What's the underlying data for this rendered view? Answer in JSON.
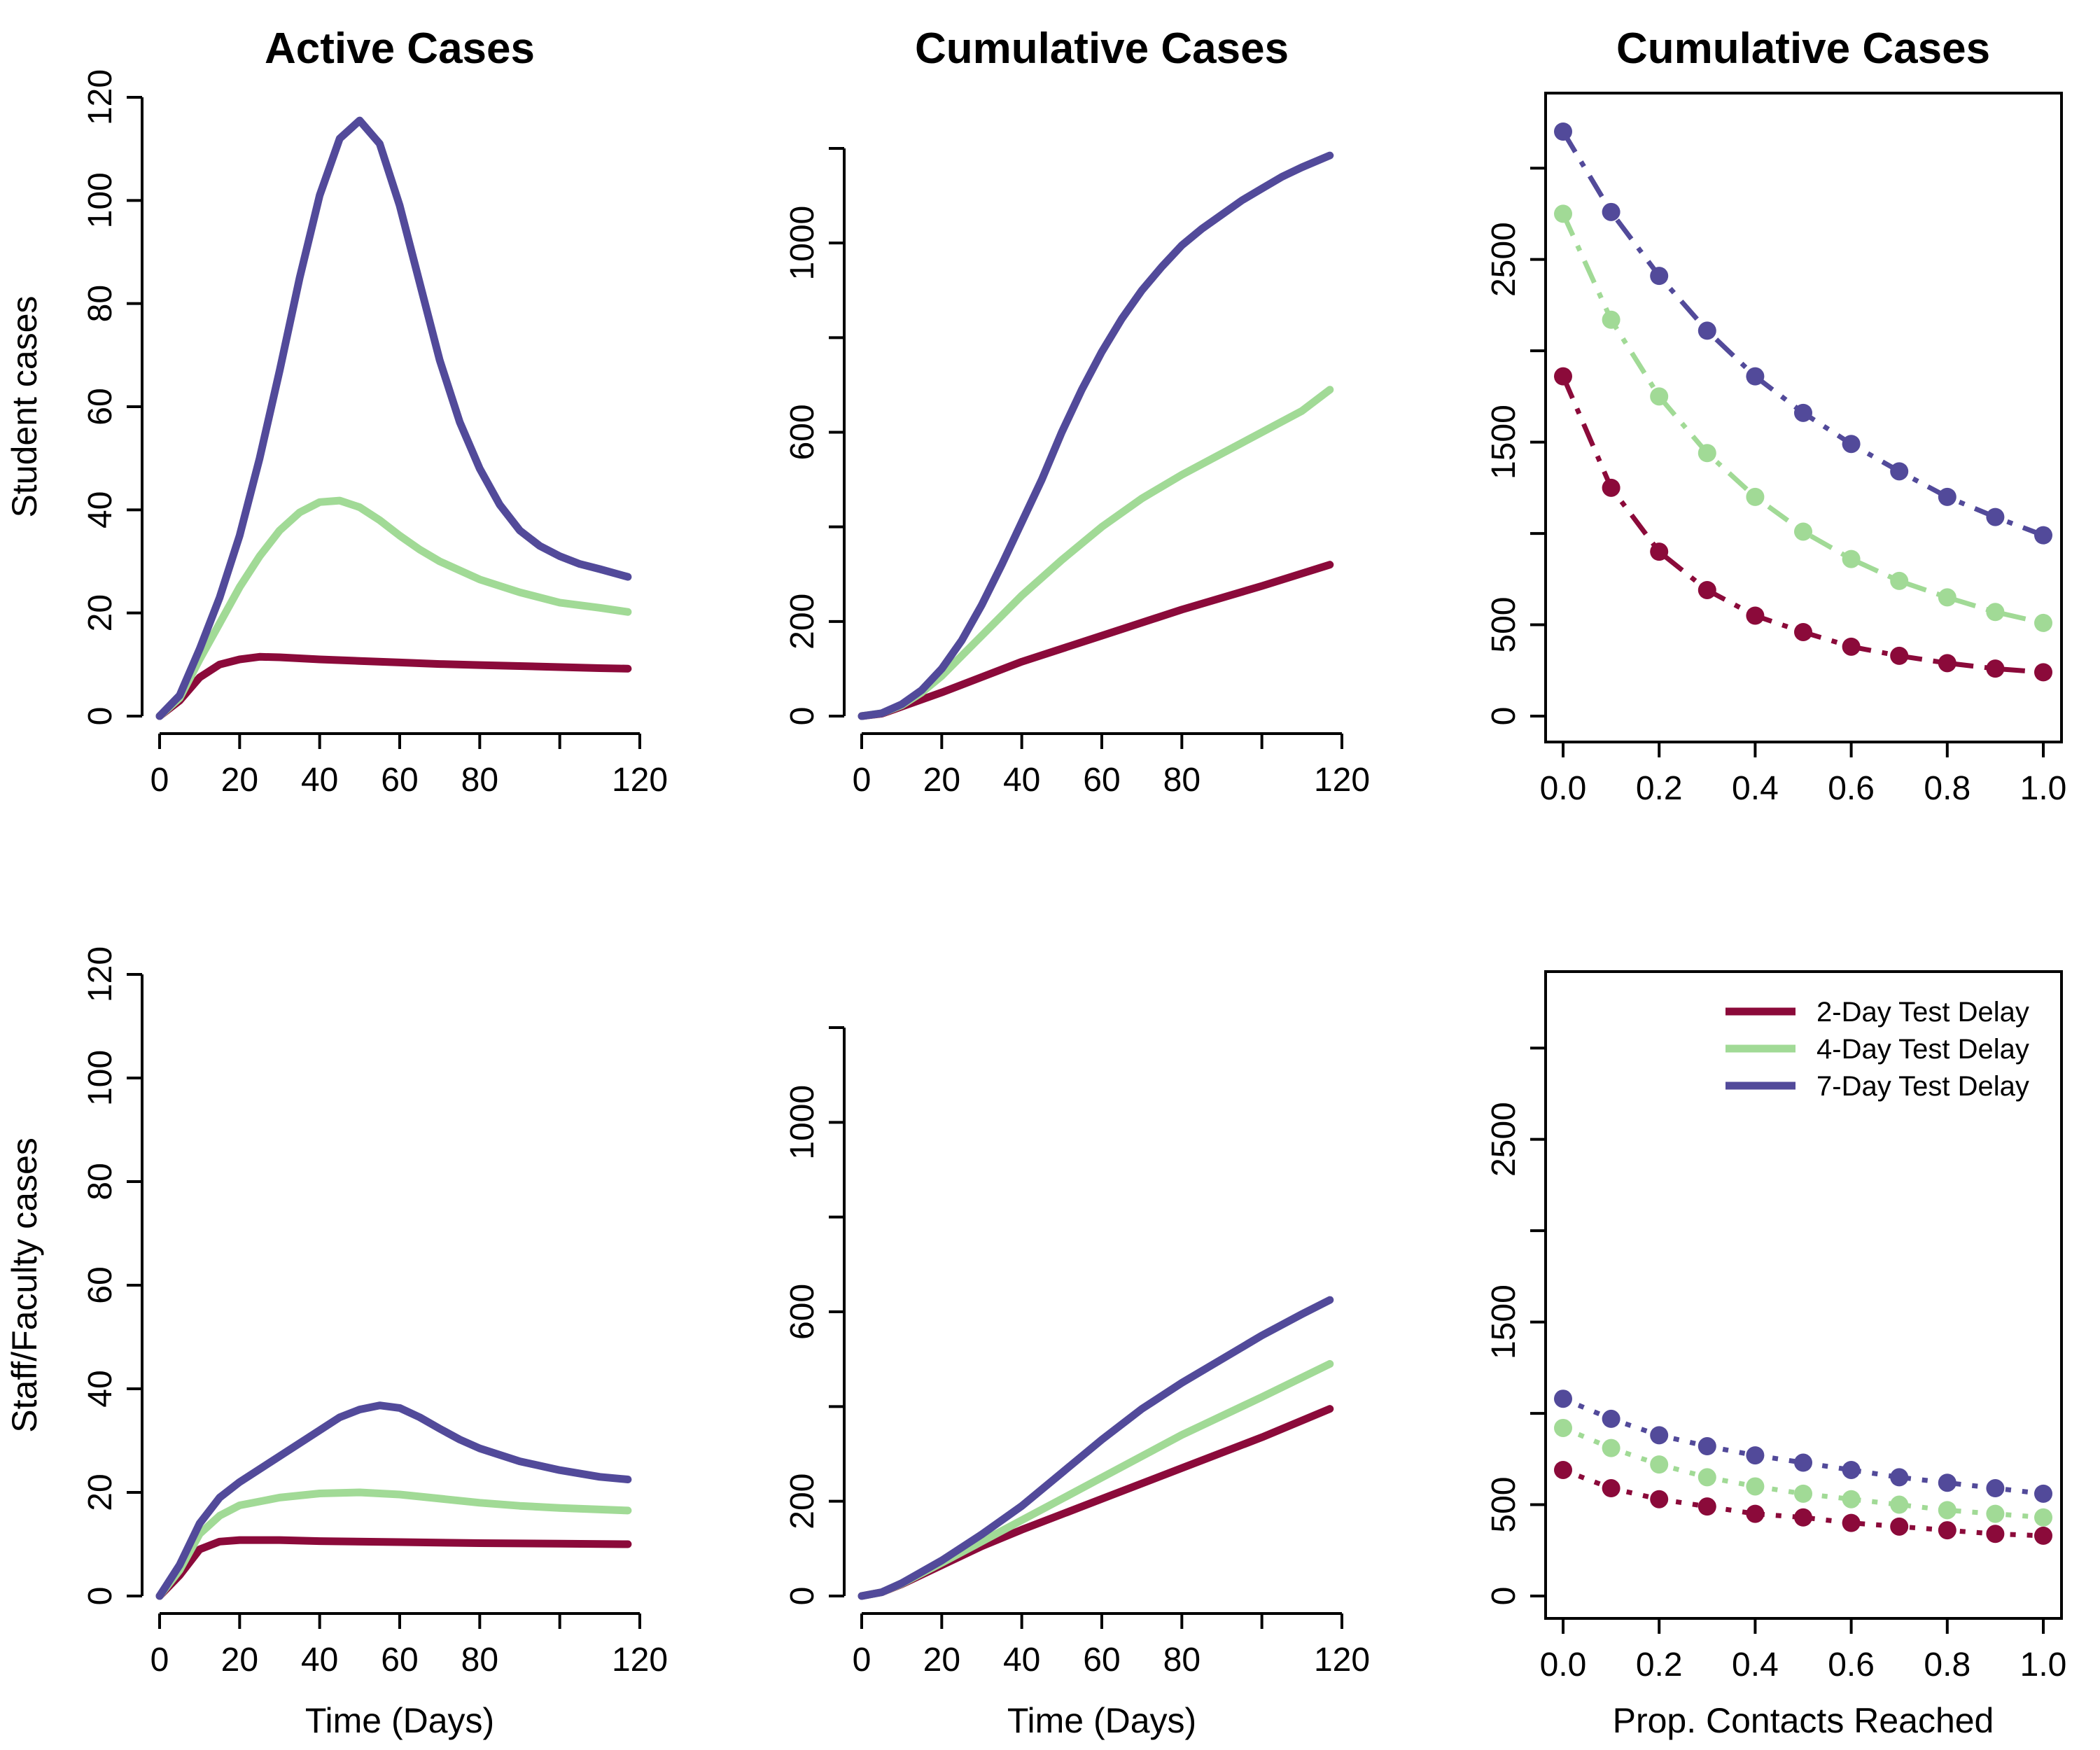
{
  "colors": {
    "delay2": "#8B0A3A",
    "delay4": "#A1DA96",
    "delay7": "#524A9A"
  },
  "legend": {
    "entries": [
      "2-Day Test Delay",
      "4-Day Test Delay",
      "7-Day Test Delay"
    ],
    "placement": "top-right"
  },
  "chart_data": [
    {
      "id": "student-active",
      "type": "line",
      "title": "Active Cases",
      "xlabel": "",
      "ylabel": "Student cases",
      "xlim": [
        0,
        120
      ],
      "ylim": [
        0,
        120
      ],
      "xticks": [
        0,
        20,
        40,
        60,
        80,
        100,
        120
      ],
      "xtick_labels": [
        "0",
        "20",
        "40",
        "60",
        "80",
        "",
        "120"
      ],
      "yticks": [
        0,
        20,
        40,
        60,
        80,
        100,
        120
      ],
      "ytick_labels": [
        "0",
        "20",
        "40",
        "60",
        "80",
        "100",
        "120"
      ],
      "series": [
        {
          "key": "delay2",
          "x": [
            0,
            5,
            10,
            15,
            20,
            25,
            30,
            40,
            50,
            60,
            70,
            80,
            90,
            100,
            110,
            117
          ],
          "y": [
            0,
            3,
            7.5,
            10,
            11,
            11.5,
            11.4,
            11,
            10.7,
            10.4,
            10.1,
            9.9,
            9.7,
            9.5,
            9.3,
            9.2
          ]
        },
        {
          "key": "delay4",
          "x": [
            0,
            5,
            10,
            15,
            20,
            25,
            30,
            35,
            40,
            45,
            50,
            55,
            60,
            65,
            70,
            80,
            90,
            100,
            110,
            117
          ],
          "y": [
            0,
            3.5,
            11,
            18,
            25,
            31,
            36,
            39.5,
            41.5,
            41.8,
            40.5,
            38,
            35,
            32.3,
            30,
            26.5,
            24,
            22,
            21,
            20.2
          ]
        },
        {
          "key": "delay7",
          "x": [
            0,
            5,
            10,
            15,
            20,
            25,
            30,
            35,
            40,
            45,
            50,
            55,
            60,
            65,
            70,
            75,
            80,
            85,
            90,
            95,
            100,
            105,
            110,
            117
          ],
          "y": [
            0,
            4,
            13,
            23,
            35,
            50,
            67,
            85,
            101,
            112,
            115.5,
            111,
            99,
            84,
            69,
            57,
            48,
            41,
            36,
            33,
            31,
            29.5,
            28.5,
            27
          ]
        }
      ]
    },
    {
      "id": "student-cumulative",
      "type": "line",
      "title": "Cumulative Cases",
      "xlabel": "",
      "ylabel": "",
      "xlim": [
        0,
        120
      ],
      "ylim": [
        0,
        1200
      ],
      "xticks": [
        0,
        20,
        40,
        60,
        80,
        100,
        120
      ],
      "xtick_labels": [
        "0",
        "20",
        "40",
        "60",
        "80",
        "",
        "120"
      ],
      "yticks": [
        0,
        200,
        400,
        600,
        800,
        1000,
        1200
      ],
      "ytick_labels": [
        "0",
        "200",
        "",
        "600",
        "",
        "1000",
        ""
      ],
      "series": [
        {
          "key": "delay2",
          "x": [
            0,
            5,
            10,
            20,
            40,
            60,
            80,
            100,
            117
          ],
          "y": [
            0,
            5,
            20,
            50,
            115,
            170,
            225,
            275,
            320
          ]
        },
        {
          "key": "delay4",
          "x": [
            0,
            5,
            10,
            15,
            20,
            30,
            40,
            50,
            60,
            70,
            80,
            90,
            100,
            110,
            117
          ],
          "y": [
            0,
            6,
            23,
            50,
            85,
            170,
            255,
            330,
            400,
            460,
            510,
            555,
            600,
            645,
            690
          ]
        },
        {
          "key": "delay7",
          "x": [
            0,
            5,
            10,
            15,
            20,
            25,
            30,
            35,
            40,
            45,
            50,
            55,
            60,
            65,
            70,
            75,
            80,
            85,
            90,
            95,
            100,
            105,
            110,
            117
          ],
          "y": [
            0,
            6,
            25,
            55,
            100,
            160,
            235,
            320,
            410,
            500,
            600,
            690,
            770,
            840,
            900,
            950,
            995,
            1030,
            1060,
            1090,
            1115,
            1140,
            1160,
            1185
          ]
        }
      ]
    },
    {
      "id": "student-contacts",
      "type": "scatter",
      "title": "Cumulative Cases",
      "xlabel": "",
      "ylabel": "",
      "xlim": [
        0,
        1
      ],
      "ylim": [
        0,
        3200
      ],
      "xticks": [
        0,
        0.2,
        0.4,
        0.6,
        0.8,
        1.0
      ],
      "xtick_labels": [
        "0.0",
        "0.2",
        "0.4",
        "0.6",
        "0.8",
        "1.0"
      ],
      "yticks": [
        0,
        500,
        1000,
        1500,
        2000,
        2500,
        3000
      ],
      "ytick_labels": [
        "0",
        "500",
        "",
        "1500",
        "",
        "2500",
        ""
      ],
      "x": [
        0,
        0.1,
        0.2,
        0.3,
        0.4,
        0.5,
        0.6,
        0.7,
        0.8,
        0.9,
        1.0
      ],
      "series": [
        {
          "key": "delay2",
          "values": [
            1860,
            1250,
            900,
            690,
            550,
            460,
            380,
            330,
            290,
            260,
            240
          ]
        },
        {
          "key": "delay4",
          "values": [
            2750,
            2170,
            1750,
            1440,
            1200,
            1010,
            860,
            740,
            650,
            570,
            510
          ]
        },
        {
          "key": "delay7",
          "values": [
            3200,
            2760,
            2410,
            2110,
            1860,
            1660,
            1490,
            1340,
            1200,
            1090,
            990
          ]
        }
      ]
    },
    {
      "id": "staff-active",
      "type": "line",
      "title": "",
      "xlabel": "Time (Days)",
      "ylabel": "Staff/Faculty cases",
      "xlim": [
        0,
        120
      ],
      "ylim": [
        0,
        120
      ],
      "xticks": [
        0,
        20,
        40,
        60,
        80,
        100,
        120
      ],
      "xtick_labels": [
        "0",
        "20",
        "40",
        "60",
        "80",
        "",
        "120"
      ],
      "yticks": [
        0,
        20,
        40,
        60,
        80,
        100,
        120
      ],
      "ytick_labels": [
        "0",
        "20",
        "40",
        "60",
        "80",
        "100",
        "120"
      ],
      "series": [
        {
          "key": "delay2",
          "x": [
            0,
            5,
            10,
            15,
            20,
            30,
            40,
            60,
            80,
            100,
            117
          ],
          "y": [
            0,
            4,
            9,
            10.5,
            10.8,
            10.8,
            10.6,
            10.4,
            10.2,
            10.1,
            10
          ]
        },
        {
          "key": "delay4",
          "x": [
            0,
            5,
            10,
            15,
            20,
            30,
            40,
            50,
            60,
            70,
            80,
            90,
            100,
            117
          ],
          "y": [
            0,
            5,
            12,
            15.5,
            17.5,
            19,
            19.8,
            20,
            19.6,
            18.8,
            18,
            17.4,
            17,
            16.5
          ]
        },
        {
          "key": "delay7",
          "x": [
            0,
            5,
            10,
            15,
            20,
            25,
            30,
            35,
            40,
            45,
            50,
            55,
            60,
            65,
            70,
            75,
            80,
            90,
            100,
            110,
            117
          ],
          "y": [
            0,
            6,
            14,
            19,
            22,
            24.5,
            27,
            29.5,
            32,
            34.5,
            36,
            36.8,
            36.3,
            34.5,
            32.3,
            30.2,
            28.5,
            26,
            24.3,
            23,
            22.5
          ]
        }
      ]
    },
    {
      "id": "staff-cumulative",
      "type": "line",
      "title": "",
      "xlabel": "Time (Days)",
      "ylabel": "",
      "xlim": [
        0,
        120
      ],
      "ylim": [
        0,
        1200
      ],
      "xticks": [
        0,
        20,
        40,
        60,
        80,
        100,
        120
      ],
      "xtick_labels": [
        "0",
        "20",
        "40",
        "60",
        "80",
        "",
        "120"
      ],
      "yticks": [
        0,
        200,
        400,
        600,
        800,
        1000,
        1200
      ],
      "ytick_labels": [
        "0",
        "200",
        "",
        "600",
        "",
        "1000",
        ""
      ],
      "series": [
        {
          "key": "delay2",
          "x": [
            0,
            5,
            10,
            20,
            30,
            40,
            60,
            80,
            100,
            117
          ],
          "y": [
            0,
            8,
            25,
            65,
            105,
            140,
            205,
            270,
            335,
            395
          ]
        },
        {
          "key": "delay4",
          "x": [
            0,
            5,
            10,
            20,
            30,
            40,
            50,
            60,
            80,
            100,
            117
          ],
          "y": [
            0,
            8,
            26,
            70,
            115,
            160,
            205,
            250,
            340,
            420,
            490
          ]
        },
        {
          "key": "delay7",
          "x": [
            0,
            5,
            10,
            20,
            30,
            40,
            50,
            60,
            70,
            80,
            90,
            100,
            110,
            117
          ],
          "y": [
            0,
            8,
            27,
            75,
            130,
            190,
            260,
            330,
            395,
            450,
            500,
            550,
            595,
            625
          ]
        }
      ]
    },
    {
      "id": "staff-contacts",
      "type": "scatter",
      "title": "",
      "xlabel": "Prop. Contacts Reached",
      "ylabel": "",
      "xlim": [
        0,
        1
      ],
      "ylim": [
        0,
        3200
      ],
      "xticks": [
        0,
        0.2,
        0.4,
        0.6,
        0.8,
        1.0
      ],
      "xtick_labels": [
        "0.0",
        "0.2",
        "0.4",
        "0.6",
        "0.8",
        "1.0"
      ],
      "yticks": [
        0,
        500,
        1000,
        1500,
        2000,
        2500,
        3000
      ],
      "ytick_labels": [
        "0",
        "500",
        "",
        "1500",
        "",
        "2500",
        ""
      ],
      "x": [
        0,
        0.1,
        0.2,
        0.3,
        0.4,
        0.5,
        0.6,
        0.7,
        0.8,
        0.9,
        1.0
      ],
      "series": [
        {
          "key": "delay2",
          "values": [
            690,
            590,
            530,
            490,
            450,
            430,
            400,
            380,
            360,
            340,
            330
          ]
        },
        {
          "key": "delay4",
          "values": [
            920,
            810,
            720,
            650,
            600,
            560,
            530,
            500,
            470,
            450,
            430
          ]
        },
        {
          "key": "delay7",
          "values": [
            1080,
            970,
            880,
            820,
            770,
            730,
            690,
            650,
            620,
            590,
            560
          ]
        }
      ]
    }
  ]
}
